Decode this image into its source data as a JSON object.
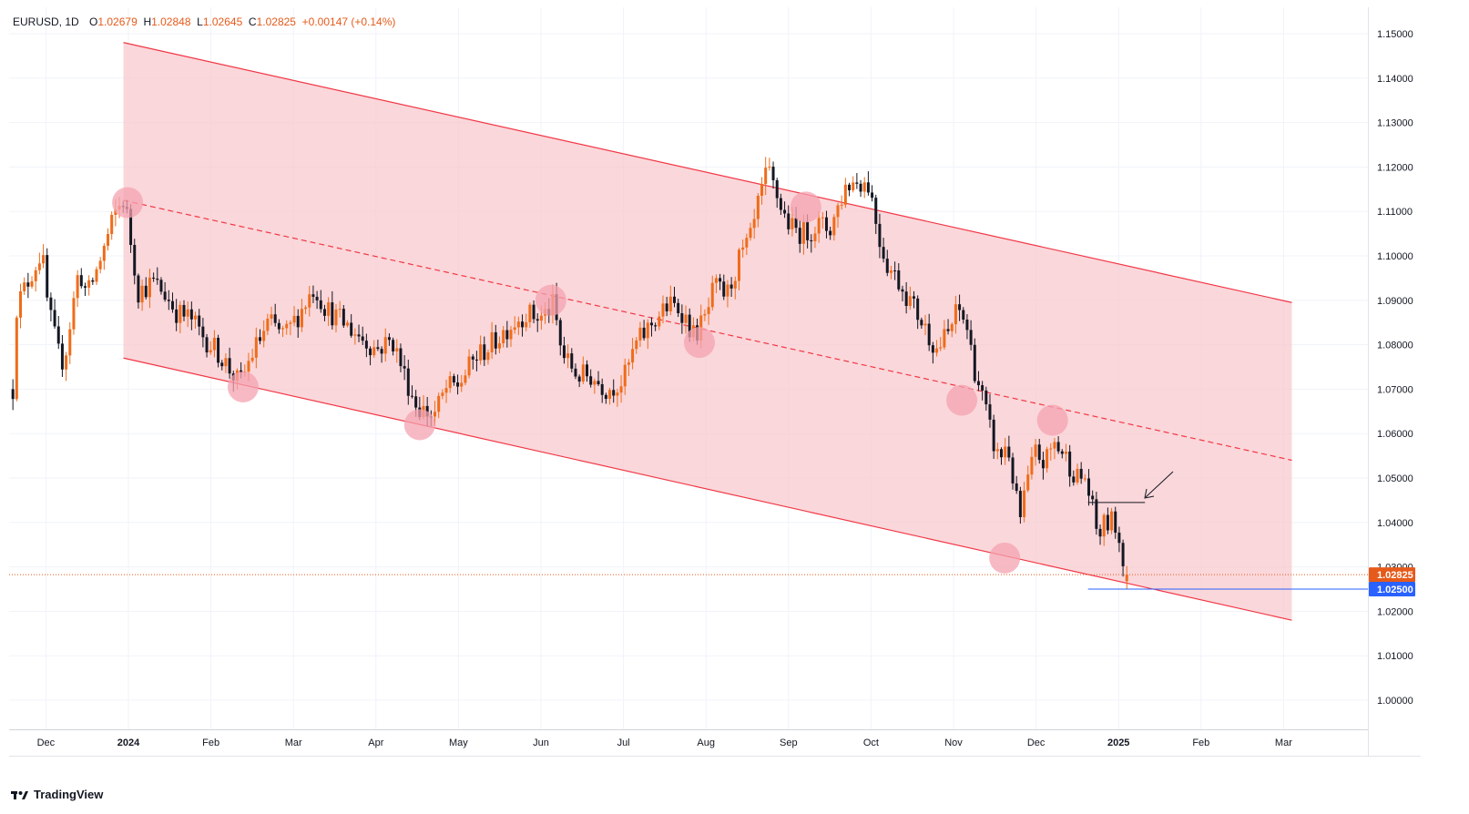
{
  "header": {
    "symbol": "EURUSD",
    "interval": "1D",
    "open_label": "O",
    "open": "1.02679",
    "high_label": "H",
    "high": "1.02848",
    "low_label": "L",
    "low": "1.02645",
    "close_label": "C",
    "close": "1.02825",
    "change": "+0.00147 (+0.14%)"
  },
  "footer": {
    "brand": "TradingView"
  },
  "colors": {
    "up": "#ef6c1a",
    "down": "#131722",
    "channel_fill": "#f8c8cc",
    "channel_line": "#f23645",
    "price_tag": "#e65a1a",
    "level_tag": "#2962ff"
  },
  "chart_data": {
    "type": "candlestick",
    "title": "EURUSD, 1D",
    "ylim": [
      0.99,
      1.155
    ],
    "y_ticks": [
      "1.15000",
      "1.14000",
      "1.13000",
      "1.12000",
      "1.11000",
      "1.10000",
      "1.09000",
      "1.08000",
      "1.07000",
      "1.06000",
      "1.05000",
      "1.04000",
      "1.03000",
      "1.02000",
      "1.01000",
      "1.00000"
    ],
    "x_ticks": [
      {
        "label": "Dec",
        "month": -1,
        "bold": false
      },
      {
        "label": "2024",
        "month": 0,
        "bold": true
      },
      {
        "label": "Feb",
        "month": 1,
        "bold": false
      },
      {
        "label": "Mar",
        "month": 2,
        "bold": false
      },
      {
        "label": "Apr",
        "month": 3,
        "bold": false
      },
      {
        "label": "May",
        "month": 4,
        "bold": false
      },
      {
        "label": "Jun",
        "month": 5,
        "bold": false
      },
      {
        "label": "Jul",
        "month": 6,
        "bold": false
      },
      {
        "label": "Aug",
        "month": 7,
        "bold": false
      },
      {
        "label": "Sep",
        "month": 8,
        "bold": false
      },
      {
        "label": "Oct",
        "month": 9,
        "bold": false
      },
      {
        "label": "Nov",
        "month": 10,
        "bold": false
      },
      {
        "label": "Dec",
        "month": 11,
        "bold": false
      },
      {
        "label": "2025",
        "month": 12,
        "bold": true
      },
      {
        "label": "Feb",
        "month": 13,
        "bold": false
      },
      {
        "label": "Mar",
        "month": 14,
        "bold": false
      }
    ],
    "close_path": [
      [
        -1.4,
        1.07
      ],
      [
        -1.37,
        1.088
      ],
      [
        -1.2,
        1.095
      ],
      [
        -1.05,
        1.101
      ],
      [
        -0.98,
        1.089
      ],
      [
        -0.85,
        1.078
      ],
      [
        -0.78,
        1.076
      ],
      [
        -0.68,
        1.088
      ],
      [
        -0.6,
        1.097
      ],
      [
        -0.5,
        1.091
      ],
      [
        -0.38,
        1.097
      ],
      [
        -0.15,
        1.11
      ],
      [
        -0.05,
        1.113
      ],
      [
        0.03,
        1.103
      ],
      [
        0.12,
        1.092
      ],
      [
        0.3,
        1.094
      ],
      [
        0.42,
        1.092
      ],
      [
        0.6,
        1.087
      ],
      [
        0.75,
        1.086
      ],
      [
        0.9,
        1.082
      ],
      [
        1.1,
        1.078
      ],
      [
        1.35,
        1.071
      ],
      [
        1.5,
        1.078
      ],
      [
        1.7,
        1.085
      ],
      [
        1.9,
        1.082
      ],
      [
        2.1,
        1.088
      ],
      [
        2.25,
        1.093
      ],
      [
        2.4,
        1.088
      ],
      [
        2.6,
        1.085
      ],
      [
        2.8,
        1.082
      ],
      [
        3.0,
        1.079
      ],
      [
        3.2,
        1.081
      ],
      [
        3.35,
        1.073
      ],
      [
        3.5,
        1.066
      ],
      [
        3.7,
        1.064
      ],
      [
        3.85,
        1.07
      ],
      [
        4.0,
        1.071
      ],
      [
        4.2,
        1.077
      ],
      [
        4.4,
        1.08
      ],
      [
        4.6,
        1.084
      ],
      [
        4.8,
        1.087
      ],
      [
        5.0,
        1.086
      ],
      [
        5.15,
        1.089
      ],
      [
        5.25,
        1.078
      ],
      [
        5.45,
        1.073
      ],
      [
        5.6,
        1.073
      ],
      [
        5.8,
        1.07
      ],
      [
        6.0,
        1.072
      ],
      [
        6.15,
        1.08
      ],
      [
        6.35,
        1.085
      ],
      [
        6.55,
        1.089
      ],
      [
        6.7,
        1.088
      ],
      [
        6.85,
        1.082
      ],
      [
        7.0,
        1.086
      ],
      [
        7.1,
        1.093
      ],
      [
        7.25,
        1.091
      ],
      [
        7.4,
        1.099
      ],
      [
        7.55,
        1.104
      ],
      [
        7.65,
        1.113
      ],
      [
        7.75,
        1.119
      ],
      [
        7.85,
        1.114
      ],
      [
        7.95,
        1.109
      ],
      [
        8.05,
        1.106
      ],
      [
        8.2,
        1.105
      ],
      [
        8.35,
        1.107
      ],
      [
        8.5,
        1.106
      ],
      [
        8.6,
        1.111
      ],
      [
        8.7,
        1.116
      ],
      [
        8.85,
        1.117
      ],
      [
        8.98,
        1.116
      ],
      [
        9.1,
        1.104
      ],
      [
        9.2,
        1.098
      ],
      [
        9.35,
        1.094
      ],
      [
        9.5,
        1.089
      ],
      [
        9.65,
        1.084
      ],
      [
        9.8,
        1.079
      ],
      [
        9.95,
        1.083
      ],
      [
        10.05,
        1.088
      ],
      [
        10.15,
        1.085
      ],
      [
        10.25,
        1.075
      ],
      [
        10.35,
        1.068
      ],
      [
        10.45,
        1.06
      ],
      [
        10.55,
        1.054
      ],
      [
        10.65,
        1.058
      ],
      [
        10.72,
        1.05
      ],
      [
        10.8,
        1.04
      ],
      [
        10.88,
        1.048
      ],
      [
        11.0,
        1.056
      ],
      [
        11.1,
        1.053
      ],
      [
        11.22,
        1.058
      ],
      [
        11.35,
        1.055
      ],
      [
        11.5,
        1.05
      ],
      [
        11.6,
        1.05
      ],
      [
        11.68,
        1.043
      ],
      [
        11.75,
        1.037
      ],
      [
        11.85,
        1.04
      ],
      [
        11.95,
        1.04
      ],
      [
        12.02,
        1.035
      ],
      [
        12.07,
        1.031
      ],
      [
        12.1,
        1.0283
      ]
    ],
    "key_points": [
      {
        "label": "channel_upper_start",
        "month": -0.06,
        "price": 1.148
      },
      {
        "label": "channel_upper_end",
        "month": 14.1,
        "price": 1.0895
      },
      {
        "label": "channel_lower_start",
        "month": -0.06,
        "price": 1.077
      },
      {
        "label": "channel_lower_end",
        "month": 14.1,
        "price": 1.018
      },
      {
        "label": "channel_mid_start",
        "month": -0.06,
        "price": 1.1125
      },
      {
        "label": "channel_mid_end",
        "month": 14.1,
        "price": 1.054
      }
    ],
    "touch_points": [
      {
        "month": -0.01,
        "price": 1.112
      },
      {
        "month": 1.39,
        "price": 1.0705
      },
      {
        "month": 3.53,
        "price": 1.062
      },
      {
        "month": 5.12,
        "price": 1.09
      },
      {
        "month": 6.92,
        "price": 1.0805
      },
      {
        "month": 8.21,
        "price": 1.111
      },
      {
        "month": 10.1,
        "price": 1.0675
      },
      {
        "month": 10.62,
        "price": 1.032
      },
      {
        "month": 11.2,
        "price": 1.063
      }
    ],
    "resistance_line": {
      "from_month": 11.63,
      "to_month": 12.32,
      "price": 1.0445
    },
    "support_line": {
      "from_month": 11.63,
      "to_month": 14.87,
      "price": 1.025
    },
    "last_price": {
      "value": 1.02825,
      "label": "1.02825"
    },
    "level_tag": {
      "value": 1.025,
      "label": "1.02500"
    }
  }
}
